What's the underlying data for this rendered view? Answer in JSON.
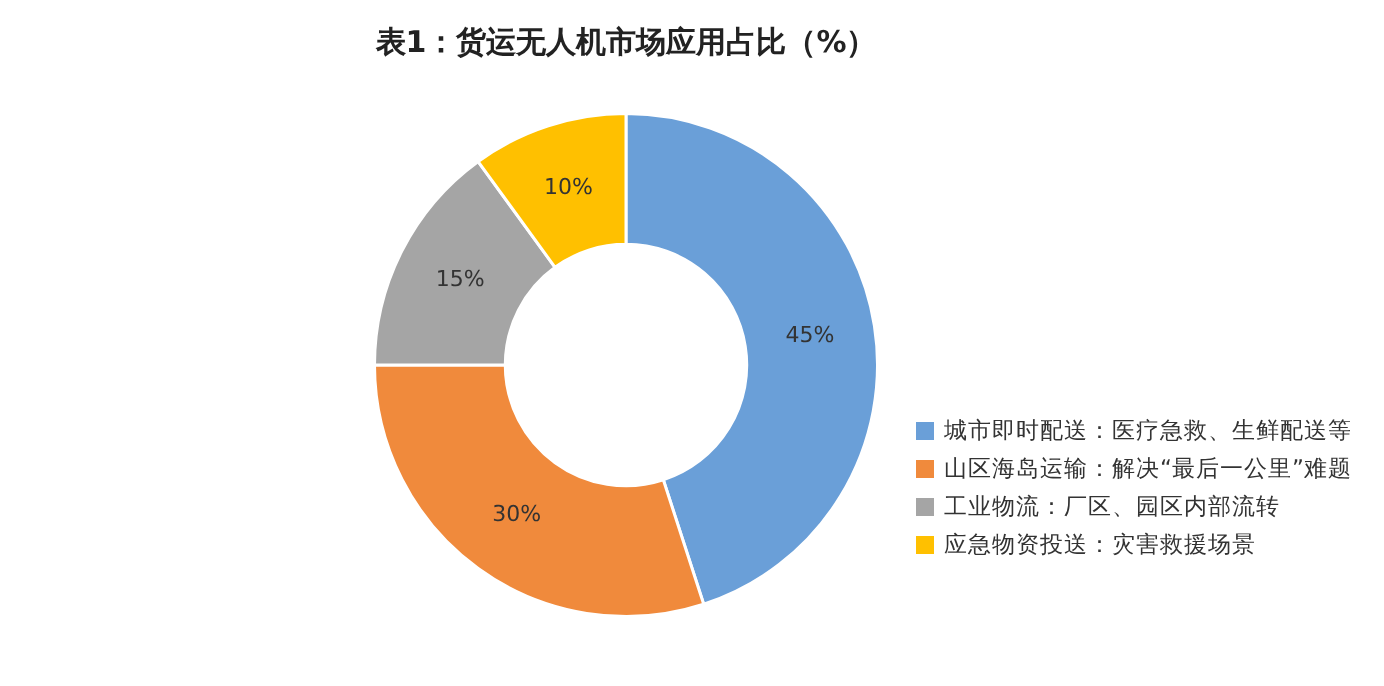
{
  "chart_data": {
    "type": "donut",
    "title": "表1：货运无人机市场应用占比（%）",
    "categories": [
      "城市即时配送：医疗急救、生鲜配送等",
      "山区海岛运输：解决“最后一公里”难题",
      "工业物流：厂区、园区内部流转",
      "应急物资投送：灾害救援场景"
    ],
    "values": [
      45,
      30,
      15,
      10
    ],
    "value_labels": [
      "45%",
      "30%",
      "15%",
      "10%"
    ],
    "colors": [
      "#6a9fd8",
      "#f08a3c",
      "#a5a5a5",
      "#ffc000"
    ],
    "legend": "right"
  }
}
